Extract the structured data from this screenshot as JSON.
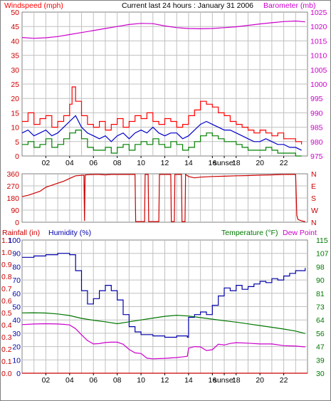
{
  "header": {
    "left_label": "Windspeed (mph)",
    "center_label": "Current last 24 hours : January 31 2006",
    "right_label": "Barometer (mb)"
  },
  "colors": {
    "gust": "#ff0000",
    "wind_avg": "#0000cc",
    "wind_min": "#008000",
    "barometer": "#cc00cc",
    "direction": "#cc0000",
    "humidity": "#0000aa",
    "temperature": "#007700",
    "dewpoint": "#cc00cc",
    "rainfall": "#cc0000",
    "grid": "#c0c0c0"
  },
  "chart_data": [
    {
      "type": "line",
      "name": "wind-barometer",
      "x_tick_labels": [
        "02",
        "04",
        "06",
        "08",
        "10",
        "12",
        "14",
        "16",
        "sunset",
        "18",
        "20",
        "22"
      ],
      "x_tick_hours": [
        2,
        4,
        6,
        8,
        10,
        12,
        14,
        16,
        17,
        18,
        20,
        22
      ],
      "x_range_hours": [
        0,
        24
      ],
      "y_left": {
        "label": "Windspeed (mph)",
        "range": [
          0,
          50
        ],
        "ticks": [
          "0",
          "5",
          "10",
          "15",
          "20",
          "25",
          "30",
          "35",
          "40",
          "45",
          "50"
        ]
      },
      "y_right": {
        "label": "Barometer (mb)",
        "range": [
          975,
          1025
        ],
        "ticks": [
          "975",
          "980",
          "985",
          "990",
          "995",
          "1000",
          "1005",
          "1010",
          "1015",
          "1020",
          "1025"
        ]
      },
      "series": [
        {
          "role": "gust",
          "axis": "left",
          "x": [
            0,
            0.5,
            1,
            1.5,
            2,
            2.5,
            3,
            3.5,
            4,
            4.2,
            4.5,
            5,
            5.5,
            6,
            6.5,
            7,
            7.5,
            8,
            8.5,
            9,
            9.5,
            10,
            10.5,
            11,
            11.5,
            12,
            12.5,
            13,
            13.5,
            14,
            14.5,
            15,
            15.5,
            16,
            16.5,
            17,
            17.5,
            18,
            18.5,
            19,
            19.5,
            20,
            20.5,
            21,
            21.5,
            22,
            22.5,
            23,
            23.5
          ],
          "values": [
            12,
            15,
            11,
            13,
            14,
            10,
            12,
            14,
            18,
            24,
            19,
            14,
            11,
            10,
            12,
            9,
            11,
            13,
            10,
            12,
            14,
            13,
            15,
            12,
            11,
            13,
            12,
            10,
            11,
            14,
            16,
            19,
            18,
            17,
            15,
            14,
            12,
            11,
            10,
            9,
            8,
            9,
            8,
            7,
            8,
            6,
            6,
            5,
            4
          ]
        },
        {
          "role": "average",
          "axis": "left",
          "x": [
            0,
            0.5,
            1,
            1.5,
            2,
            2.5,
            3,
            3.5,
            4,
            4.5,
            5,
            5.5,
            6,
            6.5,
            7,
            7.5,
            8,
            8.5,
            9,
            9.5,
            10,
            10.5,
            11,
            11.5,
            12,
            12.5,
            13,
            13.5,
            14,
            14.5,
            15,
            15.5,
            16,
            16.5,
            17,
            17.5,
            18,
            18.5,
            19,
            19.5,
            20,
            20.5,
            21,
            21.5,
            22,
            22.5,
            23,
            23.5
          ],
          "values": [
            8,
            9,
            7,
            8,
            9,
            7,
            8,
            10,
            12,
            14,
            10,
            8,
            7,
            6,
            7,
            5,
            7,
            8,
            6,
            8,
            9,
            8,
            10,
            8,
            7,
            8,
            8,
            6,
            7,
            9,
            11,
            12,
            11,
            10,
            9,
            9,
            8,
            7,
            6,
            5,
            5,
            6,
            5,
            4,
            4,
            3,
            3,
            2
          ]
        },
        {
          "role": "minimum",
          "axis": "left",
          "x": [
            0,
            0.5,
            1,
            1.5,
            2,
            2.5,
            3,
            3.5,
            4,
            4.5,
            5,
            5.5,
            6,
            6.5,
            7,
            7.5,
            8,
            8.5,
            9,
            9.5,
            10,
            10.5,
            11,
            11.5,
            12,
            12.5,
            13,
            13.5,
            14,
            14.5,
            15,
            15.5,
            16,
            16.5,
            17,
            17.5,
            18,
            18.5,
            19,
            19.5,
            20,
            20.5,
            21,
            21.5,
            22,
            22.5,
            23,
            23.5
          ],
          "values": [
            4,
            5,
            3,
            4,
            6,
            3,
            4,
            6,
            8,
            9,
            6,
            3,
            2,
            2,
            3,
            1,
            3,
            4,
            2,
            4,
            5,
            4,
            6,
            4,
            3,
            5,
            4,
            2,
            3,
            5,
            7,
            8,
            7,
            6,
            5,
            5,
            4,
            3,
            2,
            2,
            2,
            3,
            2,
            1,
            1,
            1,
            0,
            0
          ]
        },
        {
          "role": "barometer",
          "axis": "right",
          "x": [
            0,
            1,
            2,
            3,
            4,
            5,
            6,
            7,
            8,
            9,
            10,
            11,
            12,
            13,
            14,
            15,
            16,
            17,
            18,
            19,
            20,
            21,
            22,
            23,
            23.8
          ],
          "values": [
            1016.2,
            1015.9,
            1016.1,
            1016.5,
            1017.2,
            1017.9,
            1018.6,
            1019.3,
            1020.0,
            1020.7,
            1021.1,
            1021.0,
            1020.2,
            1019.6,
            1019.3,
            1019.2,
            1019.3,
            1019.6,
            1019.9,
            1020.4,
            1020.9,
            1021.3,
            1021.7,
            1021.9,
            1021.6
          ]
        }
      ]
    },
    {
      "type": "line",
      "name": "wind-direction",
      "x_range_hours": [
        0,
        24
      ],
      "y_left": {
        "range": [
          0,
          360
        ],
        "ticks": [
          "0",
          "90",
          "180",
          "270",
          "360"
        ]
      },
      "y_right": {
        "ticks": [
          "N",
          "W",
          "S",
          "E",
          "N"
        ]
      },
      "series": [
        {
          "role": "direction",
          "x": [
            0,
            0.5,
            1,
            1.5,
            2,
            2.5,
            3,
            3.5,
            4,
            4.5,
            5.2,
            5.25,
            5.3,
            5.35,
            6,
            6.5,
            7,
            7.5,
            8,
            8.5,
            9.5,
            9.55,
            10.3,
            10.35,
            10.6,
            10.65,
            11.5,
            11.55,
            12.5,
            12.55,
            12.8,
            12.85,
            13.4,
            13.45,
            13.7,
            13.75,
            14,
            14.5,
            15,
            16,
            17,
            18,
            19,
            20,
            21,
            22,
            23,
            23.1,
            23.2,
            23.5,
            23.8
          ],
          "values": [
            190,
            200,
            215,
            230,
            260,
            275,
            290,
            305,
            325,
            345,
            350,
            10,
            350,
            352,
            355,
            355,
            352,
            355,
            356,
            355,
            355,
            5,
            5,
            355,
            355,
            5,
            5,
            355,
            355,
            5,
            5,
            355,
            355,
            5,
            5,
            355,
            340,
            330,
            335,
            340,
            342,
            345,
            347,
            350,
            352,
            355,
            356,
            50,
            20,
            10,
            5
          ]
        }
      ]
    },
    {
      "type": "line",
      "name": "humidity-temperature",
      "header": {
        "rainfall_label": "Rainfall (in)",
        "humidity_label": "Humidity (%)",
        "temperature_label": "Temperature (°F)",
        "dewpoint_label": "Dew Point"
      },
      "x_tick_labels": [
        "02",
        "04",
        "06",
        "08",
        "10",
        "12",
        "14",
        "16",
        "sunset",
        "18",
        "20",
        "22"
      ],
      "x_tick_hours": [
        2,
        4,
        6,
        8,
        10,
        12,
        14,
        16,
        17,
        18,
        20,
        22
      ],
      "x_range_hours": [
        0,
        24
      ],
      "y_left_outer": {
        "label": "Rainfall (in)",
        "range": [
          0.0,
          1.1
        ],
        "ticks": [
          "0.0",
          "0.1",
          "0.2",
          "0.3",
          "0.4",
          "0.5",
          "0.6",
          "0.7",
          "0.8",
          "0.9",
          "1.0",
          "1.1"
        ]
      },
      "y_left_inner": {
        "label": "Humidity (%)",
        "range": [
          0,
          100
        ],
        "ticks": [
          "0",
          "10",
          "20",
          "30",
          "40",
          "50",
          "60",
          "70",
          "80",
          "90",
          "100"
        ]
      },
      "y_right": {
        "label": "Temperature (°F)",
        "range": [
          30,
          115
        ],
        "ticks": [
          "30",
          "39",
          "47",
          "56",
          "64",
          "73",
          "81",
          "90",
          "98",
          "107",
          "115"
        ]
      },
      "series": [
        {
          "role": "humidity",
          "axis": "left_inner",
          "x": [
            0,
            0.5,
            1,
            2,
            3,
            4,
            4.5,
            5,
            5.5,
            6,
            6.5,
            7,
            7.5,
            8,
            8.5,
            9,
            9.5,
            10,
            11,
            12,
            13,
            13.9,
            14,
            14.5,
            15,
            15.5,
            16,
            16.5,
            17,
            17.5,
            18,
            18.5,
            19,
            19.5,
            20,
            20.5,
            21,
            21.5,
            22,
            22.5,
            23,
            23.8
          ],
          "values": [
            87,
            87,
            88,
            89,
            90,
            89,
            77,
            62,
            52,
            56,
            62,
            66,
            62,
            55,
            44,
            35,
            31,
            29,
            28,
            27,
            28,
            27,
            42,
            44,
            46,
            44,
            51,
            58,
            64,
            62,
            66,
            63,
            65,
            67,
            69,
            68,
            71,
            70,
            73,
            75,
            77,
            79
          ]
        },
        {
          "role": "temperature",
          "axis": "right",
          "x": [
            0,
            1,
            2,
            3,
            4,
            5,
            6,
            7,
            8,
            9,
            10,
            11,
            12,
            13,
            14,
            15,
            16,
            17,
            18,
            19,
            20,
            21,
            22,
            23,
            23.8
          ],
          "values": [
            68.5,
            68.6,
            68.4,
            67.8,
            66.8,
            65.0,
            63.8,
            62.8,
            61.6,
            62.8,
            64.0,
            65.2,
            66.3,
            67.0,
            66.5,
            65.5,
            64.5,
            63.5,
            62.6,
            61.5,
            60.4,
            59.3,
            58.2,
            56.9,
            55.3
          ]
        },
        {
          "role": "dewpoint",
          "axis": "right",
          "x": [
            0,
            1,
            2,
            3,
            3.5,
            4,
            4.5,
            5,
            5.5,
            6,
            6.5,
            7,
            7.5,
            8,
            8.5,
            9,
            9.5,
            10,
            10.5,
            11,
            12,
            13,
            13.9,
            14,
            14.5,
            15,
            15.5,
            16,
            16.5,
            17,
            17.5,
            18,
            19,
            20,
            21,
            22,
            23,
            23.8
          ],
          "values": [
            61.0,
            61.4,
            61.6,
            61.4,
            61.2,
            60.8,
            58.4,
            54.5,
            50.8,
            48.7,
            48.9,
            49.6,
            49.8,
            49.8,
            48.5,
            45.2,
            43.0,
            42.6,
            39.6,
            39.2,
            39.5,
            40.0,
            40.8,
            46.0,
            47.0,
            46.8,
            44.5,
            45.0,
            48.5,
            48.0,
            49.0,
            49.5,
            49.2,
            48.7,
            48.7,
            47.6,
            47.3,
            46.8
          ]
        },
        {
          "role": "rainfall",
          "axis": "left_outer",
          "x": [
            0,
            24
          ],
          "values": [
            0.0,
            0.0
          ]
        }
      ]
    }
  ]
}
